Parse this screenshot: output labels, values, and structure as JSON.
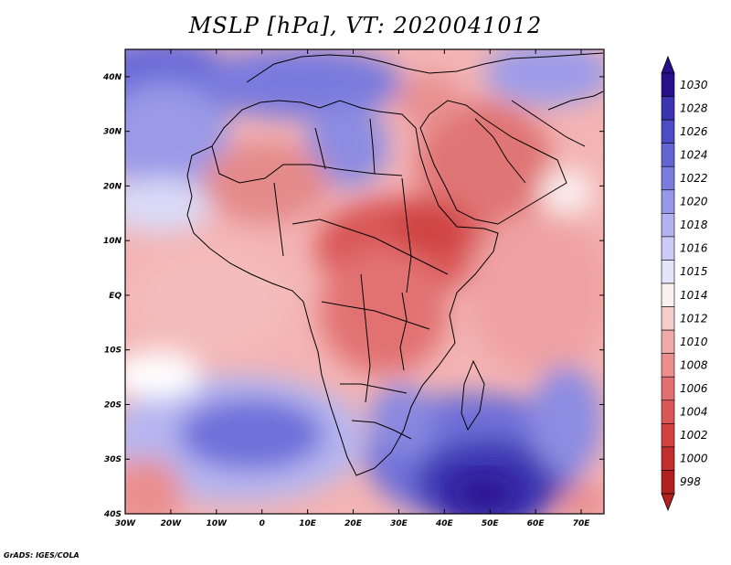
{
  "title": "MSLP [hPa], VT: 2020041012",
  "footer": "GrADS: IGES/COLA",
  "map": {
    "region": "Africa and surroundings",
    "lon_range": [
      -30,
      75
    ],
    "lat_range": [
      -40,
      45
    ],
    "x_ticks": [
      "30W",
      "20W",
      "10W",
      "0",
      "10E",
      "20E",
      "30E",
      "40E",
      "50E",
      "60E",
      "70E"
    ],
    "y_ticks": [
      "40N",
      "30N",
      "20N",
      "10N",
      "EQ",
      "10S",
      "20S",
      "30S",
      "40S"
    ]
  },
  "colorbar": {
    "levels": [
      "1030",
      "1028",
      "1026",
      "1024",
      "1022",
      "1020",
      "1018",
      "1016",
      "1015",
      "1014",
      "1012",
      "1010",
      "1008",
      "1006",
      "1004",
      "1002",
      "1000",
      "998"
    ],
    "colors": [
      "#2a0f8c",
      "#3a34b0",
      "#4d4cc6",
      "#6464d4",
      "#7c7ce0",
      "#9898e8",
      "#b2b2f0",
      "#cbcbf6",
      "#e4e4fb",
      "#fbf0ef",
      "#f6cccc",
      "#f0aaaa",
      "#ea8e8e",
      "#e27070",
      "#d95757",
      "#d04242",
      "#c22e2e",
      "#b32020"
    ]
  },
  "chart_data": {
    "type": "heatmap",
    "title": "MSLP [hPa], VT: 2020041012",
    "variable": "Mean sea level pressure",
    "units": "hPa",
    "valid_time": "2020041012",
    "x_axis": [
      "30W",
      "20W",
      "10W",
      "0",
      "10E",
      "20E",
      "30E",
      "40E",
      "50E",
      "60E",
      "70E"
    ],
    "y_axis": [
      "40N",
      "30N",
      "20N",
      "10N",
      "EQ",
      "10S",
      "20S",
      "30S",
      "40S"
    ],
    "levels": [
      998,
      1000,
      1002,
      1004,
      1006,
      1008,
      1010,
      1012,
      1014,
      1015,
      1016,
      1018,
      1020,
      1022,
      1024,
      1026,
      1028,
      1030
    ],
    "features": [
      {
        "label": "High over southwest Indian Ocean",
        "lon": 47,
        "lat": -37,
        "value": 1030
      },
      {
        "label": "High over south Atlantic",
        "lon": -5,
        "lat": -28,
        "value": 1020
      },
      {
        "label": "High over eastern Atlantic / Azores",
        "lon": -20,
        "lat": 38,
        "value": 1022
      },
      {
        "label": "High over Mediterranean / Libya",
        "lon": 18,
        "lat": 32,
        "value": 1020
      },
      {
        "label": "Low over Sudan / East Africa",
        "lon": 32,
        "lat": 10,
        "value": 1004
      },
      {
        "label": "Low over Arabian Peninsula",
        "lon": 46,
        "lat": 22,
        "value": 1006
      },
      {
        "label": "Low over western Sahara",
        "lon": 2,
        "lat": 25,
        "value": 1008
      }
    ]
  }
}
